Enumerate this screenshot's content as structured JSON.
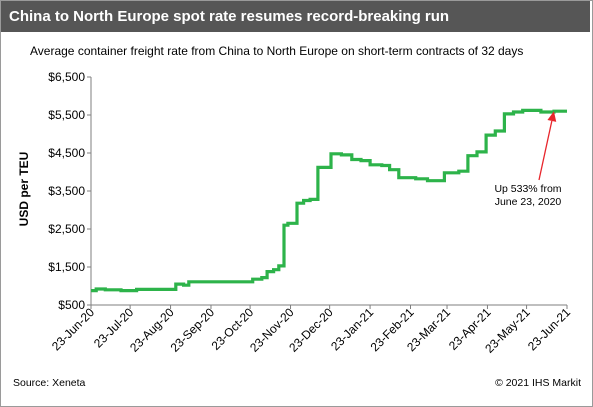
{
  "header": {
    "title": "China to North Europe spot rate resumes record-breaking run",
    "subtitle": "Average container freight rate from China to North Europe on short-term contracts of 32 days"
  },
  "footer": {
    "source": "Source: Xeneta",
    "copyright": "© 2021 IHS Markit"
  },
  "chart_data": {
    "type": "line",
    "title": "China to North Europe spot rate resumes record-breaking run",
    "subtitle": "Average container freight rate from China to North Europe on short-term contracts of 32 days",
    "xlabel": "",
    "ylabel": "USD per TEU",
    "ylim": [
      500,
      6500
    ],
    "yticks": [
      500,
      1500,
      2500,
      3500,
      4500,
      5500,
      6500
    ],
    "ytick_labels": [
      "$500",
      "$1,500",
      "$2,500",
      "$3,500",
      "$4,500",
      "$5,500",
      "$6,500"
    ],
    "xlim": [
      "2020-06-23",
      "2021-06-23"
    ],
    "xticks": [
      "2020-06-23",
      "2020-07-23",
      "2020-08-23",
      "2020-09-23",
      "2020-10-23",
      "2020-11-23",
      "2020-12-23",
      "2021-01-23",
      "2021-02-23",
      "2021-03-23",
      "2021-04-23",
      "2021-05-23",
      "2021-06-23"
    ],
    "xtick_labels": [
      "23-Jun-20",
      "23-Jul-20",
      "23-Aug-20",
      "23-Sep-20",
      "23-Oct-20",
      "23-Nov-20",
      "23-Dec-20",
      "23-Jan-21",
      "23-Feb-21",
      "23-Mar-21",
      "23-Apr-21",
      "23-May-21",
      "23-Jun-21"
    ],
    "grid": false,
    "line_color": "#2db34a",
    "series": [
      {
        "points": [
          [
            "2020-06-23",
            880
          ],
          [
            "2020-06-27",
            880
          ],
          [
            "2020-06-27",
            920
          ],
          [
            "2020-07-04",
            920
          ],
          [
            "2020-07-04",
            900
          ],
          [
            "2020-07-16",
            900
          ],
          [
            "2020-07-16",
            880
          ],
          [
            "2020-07-28",
            880
          ],
          [
            "2020-07-28",
            910
          ],
          [
            "2020-08-27",
            910
          ],
          [
            "2020-08-27",
            1050
          ],
          [
            "2020-09-02",
            1050
          ],
          [
            "2020-09-02",
            1020
          ],
          [
            "2020-09-06",
            1020
          ],
          [
            "2020-09-06",
            1110
          ],
          [
            "2020-10-25",
            1110
          ],
          [
            "2020-10-25",
            1180
          ],
          [
            "2020-11-01",
            1180
          ],
          [
            "2020-11-01",
            1220
          ],
          [
            "2020-11-05",
            1220
          ],
          [
            "2020-11-05",
            1380
          ],
          [
            "2020-11-10",
            1380
          ],
          [
            "2020-11-10",
            1430
          ],
          [
            "2020-11-14",
            1430
          ],
          [
            "2020-11-14",
            1530
          ],
          [
            "2020-11-18",
            1530
          ],
          [
            "2020-11-18",
            2600
          ],
          [
            "2020-11-21",
            2600
          ],
          [
            "2020-11-21",
            2650
          ],
          [
            "2020-11-28",
            2650
          ],
          [
            "2020-11-28",
            3180
          ],
          [
            "2020-12-03",
            3180
          ],
          [
            "2020-12-03",
            3250
          ],
          [
            "2020-12-08",
            3250
          ],
          [
            "2020-12-08",
            3280
          ],
          [
            "2020-12-14",
            3280
          ],
          [
            "2020-12-14",
            4120
          ],
          [
            "2020-12-24",
            4120
          ],
          [
            "2020-12-24",
            4480
          ],
          [
            "2021-01-01",
            4480
          ],
          [
            "2021-01-01",
            4450
          ],
          [
            "2021-01-09",
            4450
          ],
          [
            "2021-01-09",
            4330
          ],
          [
            "2021-01-16",
            4330
          ],
          [
            "2021-01-16",
            4300
          ],
          [
            "2021-01-23",
            4300
          ],
          [
            "2021-01-23",
            4190
          ],
          [
            "2021-02-01",
            4190
          ],
          [
            "2021-02-01",
            4170
          ],
          [
            "2021-02-07",
            4170
          ],
          [
            "2021-02-07",
            4060
          ],
          [
            "2021-02-14",
            4060
          ],
          [
            "2021-02-14",
            3850
          ],
          [
            "2021-02-27",
            3850
          ],
          [
            "2021-02-27",
            3820
          ],
          [
            "2021-03-08",
            3820
          ],
          [
            "2021-03-08",
            3770
          ],
          [
            "2021-03-21",
            3770
          ],
          [
            "2021-03-21",
            3980
          ],
          [
            "2021-04-01",
            3980
          ],
          [
            "2021-04-01",
            4020
          ],
          [
            "2021-04-08",
            4020
          ],
          [
            "2021-04-08",
            4430
          ],
          [
            "2021-04-15",
            4430
          ],
          [
            "2021-04-15",
            4530
          ],
          [
            "2021-04-22",
            4530
          ],
          [
            "2021-04-22",
            4970
          ],
          [
            "2021-04-29",
            4970
          ],
          [
            "2021-04-29",
            5080
          ],
          [
            "2021-05-06",
            5080
          ],
          [
            "2021-05-06",
            5530
          ],
          [
            "2021-05-13",
            5530
          ],
          [
            "2021-05-13",
            5580
          ],
          [
            "2021-05-20",
            5580
          ],
          [
            "2021-05-20",
            5620
          ],
          [
            "2021-06-03",
            5620
          ],
          [
            "2021-06-03",
            5580
          ],
          [
            "2021-06-13",
            5580
          ],
          [
            "2021-06-13",
            5600
          ],
          [
            "2021-06-23",
            5600
          ]
        ]
      }
    ],
    "annotation": {
      "text_lines": [
        "Up 533% from",
        "June 23, 2020"
      ],
      "arrow_color": "#e8262c",
      "arrow_target": [
        "2021-06-13",
        5600
      ]
    }
  }
}
